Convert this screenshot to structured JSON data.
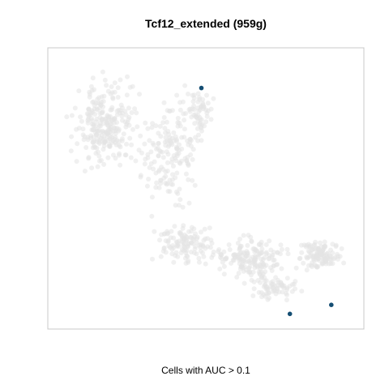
{
  "title": "Tcf12_extended (959g)",
  "caption": "Cells with AUC > 0.1",
  "colors": {
    "background_points": "#e4e4e4",
    "highlight_points": "#154e73",
    "frame": "#c8c8c8"
  },
  "chart_data": {
    "type": "scatter",
    "title": "Tcf12_extended (959g)",
    "xlabel": "Cells with AUC > 0.1",
    "ylabel": "",
    "axes_ticks": false,
    "grid": false,
    "legend": "none",
    "background_shape": "L-shaped cloud of grey cells: tall vertical band on the left and a horizontal band along the bottom-right",
    "highlighted_points_count": 3,
    "highlighted_series": [
      {
        "x": 0.486,
        "y": 0.857
      },
      {
        "x": 0.766,
        "y": 0.054
      },
      {
        "x": 0.897,
        "y": 0.086
      }
    ]
  }
}
